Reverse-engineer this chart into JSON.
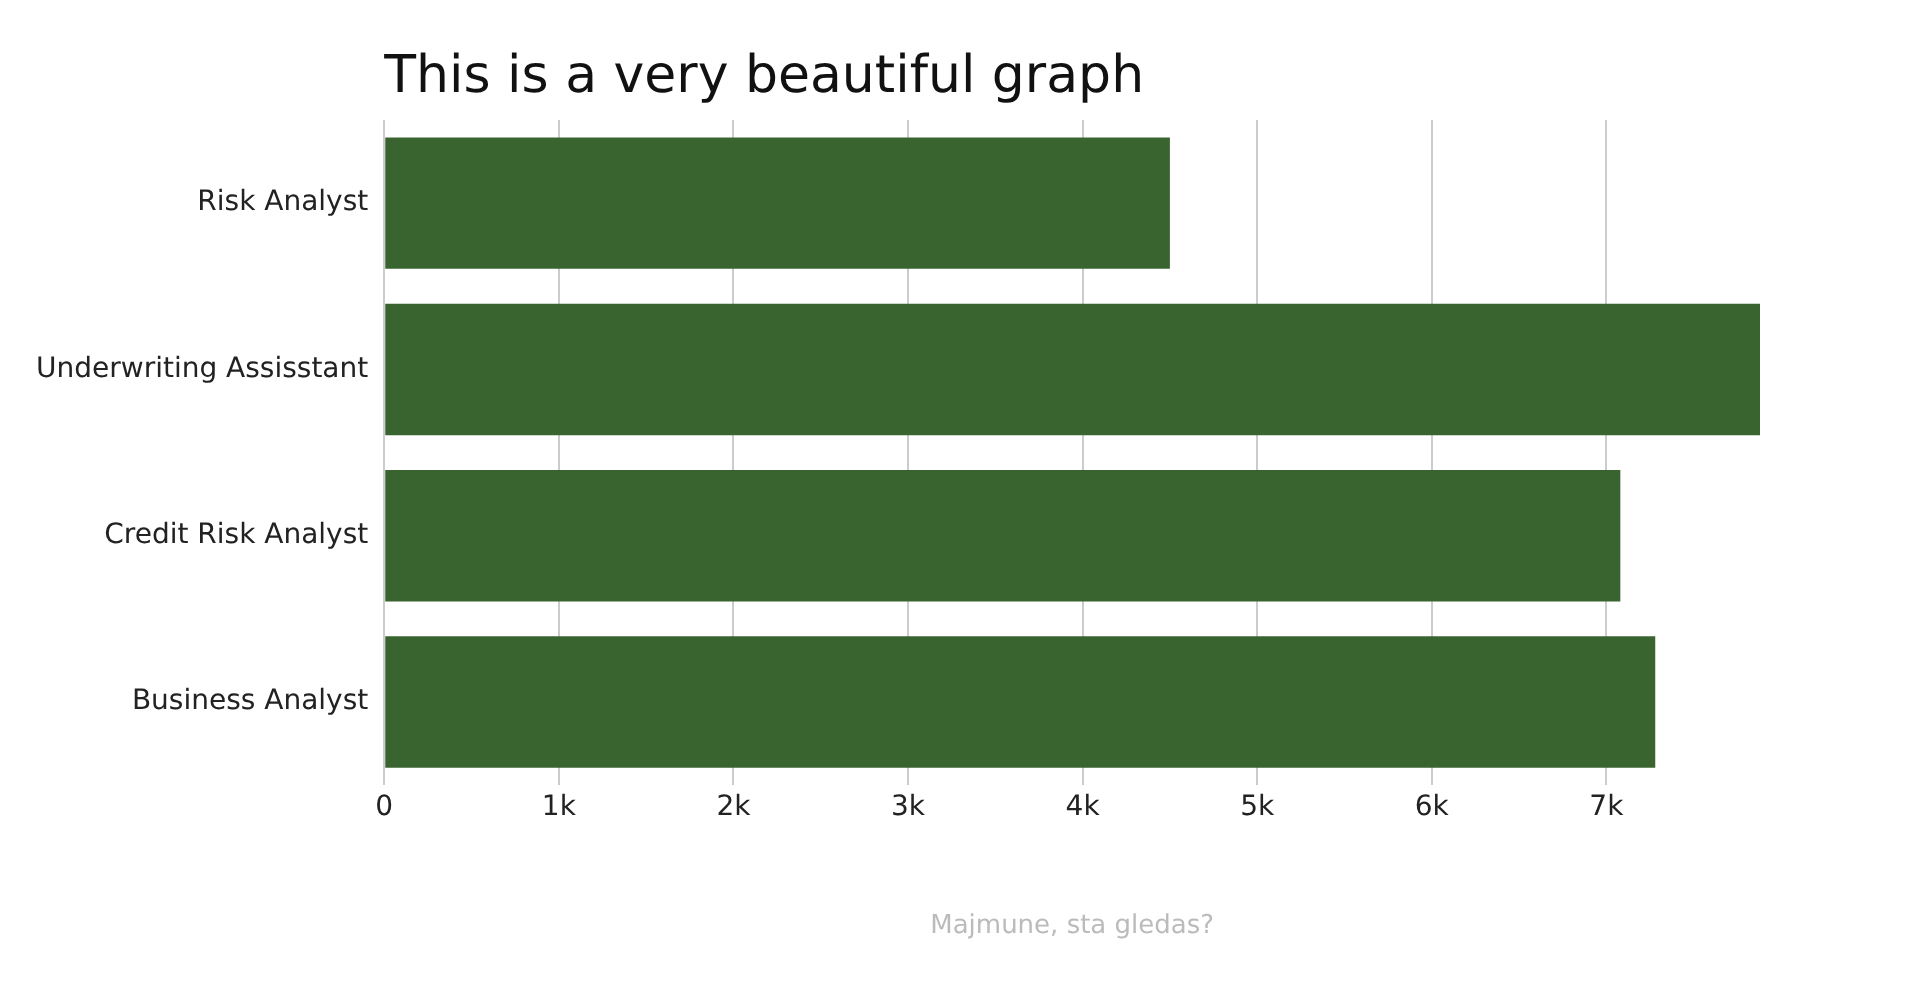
{
  "chart_data": {
    "type": "bar",
    "orientation": "horizontal",
    "title": "This is a very beautiful graph",
    "xlabel": "Majmune, sta gledas?",
    "categories": [
      "Risk Analyst",
      "Underwriting Assisstant",
      "Credit Risk Analyst",
      "Business Analyst"
    ],
    "values": [
      4500,
      7880,
      7080,
      7280
    ],
    "color": "#3a642f",
    "xlim": [
      0,
      7880
    ],
    "xticks": [
      0,
      {
        "value": 1000,
        "label": "1k"
      },
      {
        "value": 2000,
        "label": "2k"
      },
      {
        "value": 3000,
        "label": "3k"
      },
      {
        "value": 4000,
        "label": "4k"
      },
      {
        "value": 5000,
        "label": "5k"
      },
      {
        "value": 6000,
        "label": "6k"
      },
      {
        "value": 7000,
        "label": "7k"
      }
    ],
    "grid": "x",
    "legend": false
  }
}
